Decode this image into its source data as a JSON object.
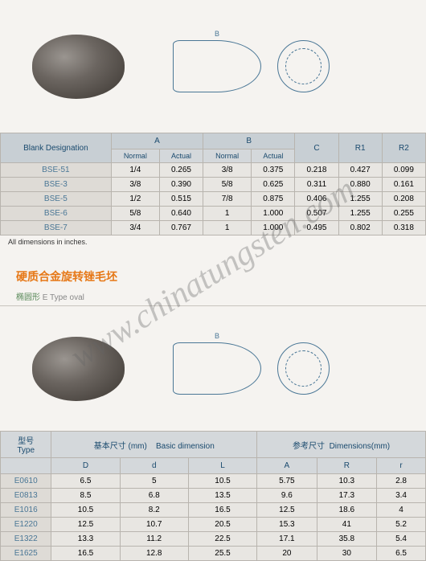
{
  "table1": {
    "headers": {
      "designation": "Blank\nDesignation",
      "a": "A",
      "b": "B",
      "c": "C",
      "r1": "R1",
      "r2": "R2",
      "normal": "Normal",
      "actual": "Actual"
    },
    "rows": [
      {
        "name": "BSE-51",
        "an": "1/4",
        "aa": "0.265",
        "bn": "3/8",
        "ba": "0.375",
        "c": "0.218",
        "r1": "0.427",
        "r2": "0.099"
      },
      {
        "name": "BSE-3",
        "an": "3/8",
        "aa": "0.390",
        "bn": "5/8",
        "ba": "0.625",
        "c": "0.311",
        "r1": "0.880",
        "r2": "0.161"
      },
      {
        "name": "BSE-5",
        "an": "1/2",
        "aa": "0.515",
        "bn": "7/8",
        "ba": "0.875",
        "c": "0.406",
        "r1": "1.255",
        "r2": "0.208"
      },
      {
        "name": "BSE-6",
        "an": "5/8",
        "aa": "0.640",
        "bn": "1",
        "ba": "1.000",
        "c": "0.507",
        "r1": "1.255",
        "r2": "0.255"
      },
      {
        "name": "BSE-7",
        "an": "3/4",
        "aa": "0.767",
        "bn": "1",
        "ba": "1.000",
        "c": "0.495",
        "r1": "0.802",
        "r2": "0.318"
      }
    ],
    "caption": "All dimensions in inches."
  },
  "section2": {
    "title_cn": "硬质合金旋转锉毛坯",
    "subtitle_cn": "椭圆形",
    "subtitle_en": "E Type oval"
  },
  "table2": {
    "headers": {
      "type_cn": "型号",
      "type_en": "Type",
      "basic_cn": "基本尺寸 (mm)",
      "basic_en": "Basic dimension",
      "ref_cn": "参考尺寸",
      "ref_en": "Dimensions(mm)",
      "D": "D",
      "d": "d",
      "L": "L",
      "A": "A",
      "R": "R",
      "r": "r"
    },
    "rows": [
      {
        "name": "E0610",
        "D": "6.5",
        "d": "5",
        "L": "10.5",
        "A": "5.75",
        "R": "10.3",
        "r": "2.8"
      },
      {
        "name": "E0813",
        "D": "8.5",
        "d": "6.8",
        "L": "13.5",
        "A": "9.6",
        "R": "17.3",
        "r": "3.4"
      },
      {
        "name": "E1016",
        "D": "10.5",
        "d": "8.2",
        "L": "16.5",
        "A": "12.5",
        "R": "18.6",
        "r": "4"
      },
      {
        "name": "E1220",
        "D": "12.5",
        "d": "10.7",
        "L": "20.5",
        "A": "15.3",
        "R": "41",
        "r": "5.2"
      },
      {
        "name": "E1322",
        "D": "13.3",
        "d": "11.2",
        "L": "22.5",
        "A": "17.1",
        "R": "35.8",
        "r": "5.4"
      },
      {
        "name": "E1625",
        "D": "16.5",
        "d": "12.8",
        "L": "25.5",
        "A": "20",
        "R": "30",
        "r": "6.5"
      }
    ]
  },
  "watermark": "www.chinatungsten.com",
  "colors": {
    "header_bg": "#d4d8db",
    "header_text": "#1a4a6e",
    "cell_bg": "#e8e6e2",
    "label_bg": "#dedbd6",
    "label_text": "#4a7796",
    "border": "#b8b4ae",
    "title_orange": "#e67817",
    "subtitle_green": "#5a8a5a"
  }
}
